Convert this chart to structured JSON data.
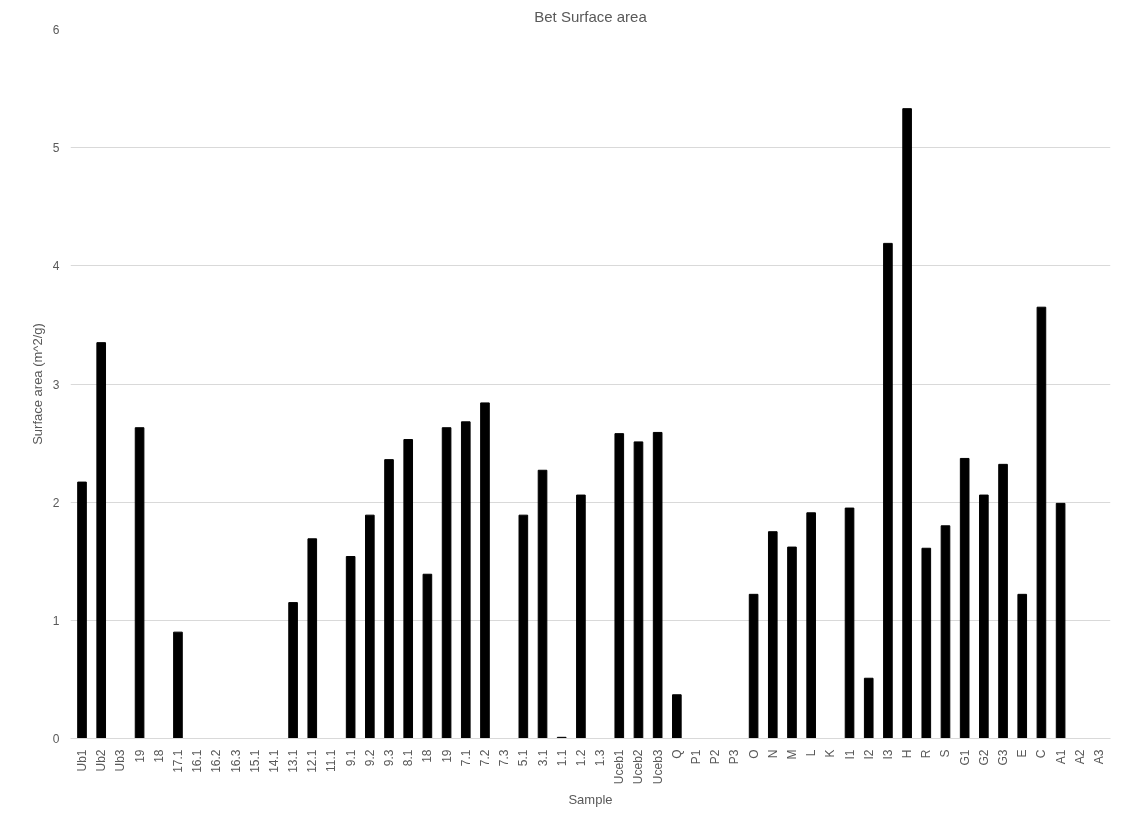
{
  "chart_data": {
    "type": "bar",
    "title": "Bet Surface area",
    "xlabel": "Sample",
    "ylabel": "Surface area (m^2/g)",
    "categories": [
      "Ub1",
      "Ub2",
      "Ub3",
      "19",
      "18",
      "17.1",
      "16.1",
      "16.2",
      "16.3",
      "15.1",
      "14.1",
      "13.1",
      "12.1",
      "11.1",
      "9.1",
      "9.2",
      "9.3",
      "8.1",
      "18",
      "19",
      "7.1",
      "7.2",
      "7.3",
      "5.1",
      "3.1",
      "1.1",
      "1.2",
      "1.3",
      "Uceb1",
      "Uceb2",
      "Uceb3",
      "Q",
      "P1",
      "P2",
      "P3",
      "O",
      "N",
      "M",
      "L",
      "K",
      "I1",
      "I2",
      "I3",
      "H",
      "R",
      "S",
      "G1",
      "G2",
      "G3",
      "E",
      "C",
      "A1",
      "A2",
      "A3"
    ],
    "values": [
      2.17,
      3.35,
      0,
      2.63,
      0,
      0.9,
      0,
      0,
      0,
      0,
      0,
      1.15,
      1.69,
      0,
      1.54,
      1.89,
      2.36,
      2.53,
      1.39,
      2.63,
      2.68,
      2.84,
      0,
      1.89,
      2.27,
      0.01,
      2.06,
      0,
      2.58,
      2.51,
      2.59,
      0.37,
      0,
      0,
      0,
      1.22,
      1.75,
      1.62,
      1.91,
      0,
      1.95,
      0.51,
      4.19,
      5.33,
      1.61,
      1.8,
      2.37,
      2.06,
      2.32,
      1.22,
      3.65,
      1.99,
      0,
      0
    ],
    "color": "#000000",
    "ylim": [
      0,
      6
    ],
    "yticks": [
      0,
      1,
      2,
      3,
      4,
      5,
      6
    ],
    "grid": "y"
  }
}
